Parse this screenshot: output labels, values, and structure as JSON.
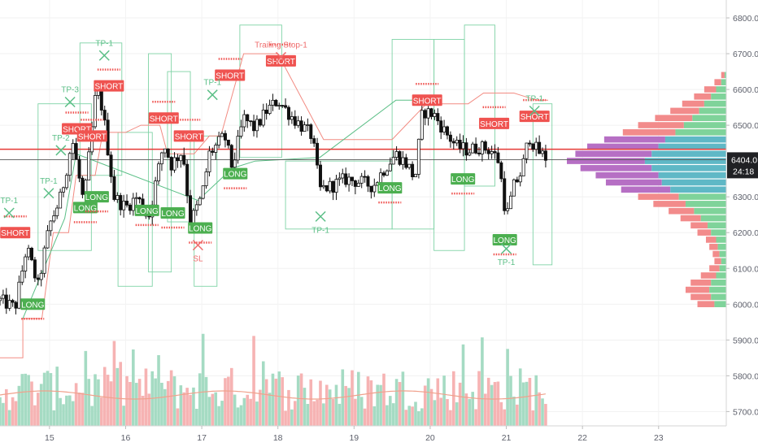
{
  "chart_data": {
    "type": "candlestick",
    "title": "",
    "xlabel": "",
    "ylabel": "",
    "ylim": [
      5660,
      6850
    ],
    "x_ticks": [
      {
        "label": "15",
        "day": 15
      },
      {
        "label": "16",
        "day": 16
      },
      {
        "label": "17",
        "day": 17
      },
      {
        "label": "18",
        "day": 18
      },
      {
        "label": "19",
        "day": 19
      },
      {
        "label": "20",
        "day": 20
      },
      {
        "label": "21",
        "day": 21
      },
      {
        "label": "22",
        "day": 22
      },
      {
        "label": "23",
        "day": 23
      }
    ],
    "xlim": [
      14.35,
      23.75
    ],
    "y_ticks": [
      {
        "label": "5700.0",
        "value": 5700
      },
      {
        "label": "5800.0",
        "value": 5800
      },
      {
        "label": "5900.0",
        "value": 5900
      },
      {
        "label": "6000.0",
        "value": 6000
      },
      {
        "label": "6100.0",
        "value": 6100
      },
      {
        "label": "6200.0",
        "value": 6200
      },
      {
        "label": "6300.0",
        "value": 6300
      },
      {
        "label": "6500.0",
        "value": 6500
      },
      {
        "label": "6600.0",
        "value": 6600
      },
      {
        "label": "6700.0",
        "value": 6700
      },
      {
        "label": "6800.0",
        "value": 6800
      }
    ],
    "last_price": {
      "label": "6404.0",
      "value": 6404,
      "countdown": "24:18"
    },
    "horizontal_lines": [
      {
        "value": 6433,
        "color": "#e53935"
      },
      {
        "value": 6404,
        "color": "#555555"
      }
    ],
    "price_path": [
      [
        14.35,
        6010
      ],
      [
        14.55,
        5990
      ],
      [
        14.7,
        6160
      ],
      [
        14.85,
        6050
      ],
      [
        15.0,
        6220
      ],
      [
        15.15,
        6300
      ],
      [
        15.3,
        6460
      ],
      [
        15.45,
        6280
      ],
      [
        15.62,
        6610
      ],
      [
        15.7,
        6540
      ],
      [
        15.85,
        6300
      ],
      [
        16.0,
        6270
      ],
      [
        16.15,
        6300
      ],
      [
        16.3,
        6240
      ],
      [
        16.5,
        6450
      ],
      [
        16.6,
        6390
      ],
      [
        16.75,
        6430
      ],
      [
        16.85,
        6230
      ],
      [
        17.0,
        6300
      ],
      [
        17.1,
        6420
      ],
      [
        17.3,
        6470
      ],
      [
        17.4,
        6380
      ],
      [
        17.55,
        6520
      ],
      [
        17.7,
        6490
      ],
      [
        17.85,
        6540
      ],
      [
        18.0,
        6570
      ],
      [
        18.2,
        6520
      ],
      [
        18.45,
        6470
      ],
      [
        18.55,
        6320
      ],
      [
        18.7,
        6330
      ],
      [
        18.9,
        6350
      ],
      [
        19.1,
        6340
      ],
      [
        19.25,
        6330
      ],
      [
        19.4,
        6380
      ],
      [
        19.55,
        6420
      ],
      [
        19.7,
        6390
      ],
      [
        19.8,
        6350
      ],
      [
        19.9,
        6540
      ],
      [
        20.05,
        6530
      ],
      [
        20.2,
        6480
      ],
      [
        20.35,
        6440
      ],
      [
        20.5,
        6430
      ],
      [
        20.65,
        6440
      ],
      [
        20.8,
        6430
      ],
      [
        20.9,
        6400
      ],
      [
        21.0,
        6240
      ],
      [
        21.1,
        6330
      ],
      [
        21.2,
        6370
      ],
      [
        21.3,
        6470
      ],
      [
        21.4,
        6430
      ],
      [
        21.55,
        6404
      ]
    ],
    "volume_profile": [
      {
        "price": 6000,
        "buy": 7,
        "sell": 10
      },
      {
        "price": 6020,
        "buy": 9,
        "sell": 12
      },
      {
        "price": 6040,
        "buy": 10,
        "sell": 14
      },
      {
        "price": 6060,
        "buy": 9,
        "sell": 12
      },
      {
        "price": 6080,
        "buy": 6,
        "sell": 9
      },
      {
        "price": 6100,
        "buy": 4,
        "sell": 6
      },
      {
        "price": 6120,
        "buy": 3,
        "sell": 4
      },
      {
        "price": 6140,
        "buy": 4,
        "sell": 4
      },
      {
        "price": 6160,
        "buy": 5,
        "sell": 5
      },
      {
        "price": 6180,
        "buy": 6,
        "sell": 6
      },
      {
        "price": 6200,
        "buy": 9,
        "sell": 8
      },
      {
        "price": 6220,
        "buy": 11,
        "sell": 10
      },
      {
        "price": 6240,
        "buy": 15,
        "sell": 12
      },
      {
        "price": 6260,
        "buy": 19,
        "sell": 15
      },
      {
        "price": 6280,
        "buy": 24,
        "sell": 19
      },
      {
        "price": 6300,
        "buy": 28,
        "sell": 24
      },
      {
        "price": 6320,
        "buy": 33,
        "sell": 29
      },
      {
        "price": 6340,
        "buy": 38,
        "sell": 33
      },
      {
        "price": 6360,
        "buy": 40,
        "sell": 37
      },
      {
        "price": 6380,
        "buy": 44,
        "sell": 42
      },
      {
        "price": 6400,
        "buy": 48,
        "sell": 46
      },
      {
        "price": 6420,
        "buy": 44,
        "sell": 45
      },
      {
        "price": 6440,
        "buy": 40,
        "sell": 42
      },
      {
        "price": 6460,
        "buy": 36,
        "sell": 36
      },
      {
        "price": 6480,
        "buy": 30,
        "sell": 31
      },
      {
        "price": 6500,
        "buy": 25,
        "sell": 27
      },
      {
        "price": 6520,
        "buy": 20,
        "sell": 22
      },
      {
        "price": 6540,
        "buy": 16,
        "sell": 17
      },
      {
        "price": 6560,
        "buy": 13,
        "sell": 13
      },
      {
        "price": 6580,
        "buy": 9,
        "sell": 10
      },
      {
        "price": 6600,
        "buy": 6,
        "sell": 7
      },
      {
        "price": 6620,
        "buy": 3,
        "sell": 4
      },
      {
        "price": 6640,
        "buy": 1,
        "sell": 2
      }
    ],
    "value_area": [
      6320,
      6460
    ],
    "signals": [
      {
        "kind": "short",
        "label": "SHORT",
        "day": 14.55,
        "price": 6200
      },
      {
        "kind": "long",
        "label": "LONG",
        "day": 14.78,
        "price": 6000
      },
      {
        "kind": "short",
        "label": "SHORT",
        "day": 15.36,
        "price": 6490
      },
      {
        "kind": "short",
        "label": "SHORT",
        "day": 15.56,
        "price": 6470
      },
      {
        "kind": "long",
        "label": "LONG",
        "day": 15.47,
        "price": 6270
      },
      {
        "kind": "long",
        "label": "LONG",
        "day": 15.62,
        "price": 6300
      },
      {
        "kind": "short",
        "label": "SHORT",
        "day": 15.78,
        "price": 6610
      },
      {
        "kind": "long",
        "label": "LONG",
        "day": 16.28,
        "price": 6262
      },
      {
        "kind": "short",
        "label": "SHORT",
        "day": 16.5,
        "price": 6520
      },
      {
        "kind": "long",
        "label": "LONG",
        "day": 16.62,
        "price": 6255
      },
      {
        "kind": "short",
        "label": "SHORT",
        "day": 16.83,
        "price": 6470
      },
      {
        "kind": "long",
        "label": "LONG",
        "day": 16.98,
        "price": 6213
      },
      {
        "kind": "short",
        "label": "SHORT",
        "day": 17.37,
        "price": 6640
      },
      {
        "kind": "long",
        "label": "LONG",
        "day": 17.44,
        "price": 6365
      },
      {
        "kind": "short",
        "label": "SHORT",
        "day": 18.04,
        "price": 6680
      },
      {
        "kind": "long",
        "label": "LONG",
        "day": 19.47,
        "price": 6325
      },
      {
        "kind": "short",
        "label": "SHORT",
        "day": 19.96,
        "price": 6570
      },
      {
        "kind": "long",
        "label": "LONG",
        "day": 20.43,
        "price": 6350
      },
      {
        "kind": "short",
        "label": "SHORT",
        "day": 20.84,
        "price": 6505
      },
      {
        "kind": "long",
        "label": "LONG",
        "day": 20.98,
        "price": 6180
      },
      {
        "kind": "short",
        "label": "SHORT",
        "day": 21.37,
        "price": 6525
      }
    ],
    "exits": [
      {
        "label": "TP-1",
        "day": 14.47,
        "price": 6255,
        "text_side": "top"
      },
      {
        "label": "TP-1",
        "day": 14.99,
        "price": 6310,
        "text_side": "top"
      },
      {
        "label": "TP-3",
        "day": 15.27,
        "price": 6565,
        "text_side": "top"
      },
      {
        "label": "TP-2",
        "day": 15.15,
        "price": 6430,
        "text_side": "top"
      },
      {
        "label": "TP-1",
        "day": 15.72,
        "price": 6695,
        "text_side": "top"
      },
      {
        "label": "TP-1",
        "day": 17.14,
        "price": 6585,
        "text_side": "top"
      },
      {
        "label": "SL",
        "day": 16.95,
        "price": 6165,
        "text_side": "bottom"
      },
      {
        "label": "Trailing Stop-1",
        "day": 18.04,
        "price": 6690,
        "text_side": "top"
      },
      {
        "label": "TP-1",
        "day": 18.56,
        "price": 6245,
        "text_side": "bottom"
      },
      {
        "label": "TP-1",
        "day": 21.0,
        "price": 6155,
        "text_side": "bottom"
      },
      {
        "label": "TP-1",
        "day": 21.37,
        "price": 6540,
        "text_side": "top"
      }
    ],
    "annotations_extra": [
      {
        "label": "SHORT",
        "day": 14.55,
        "price": 6200
      }
    ]
  }
}
